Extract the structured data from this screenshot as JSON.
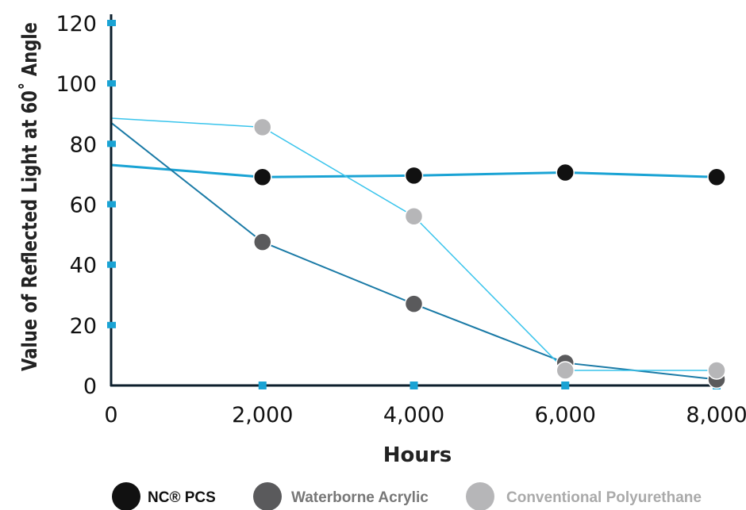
{
  "chart_data": {
    "type": "line",
    "xlabel": "Hours",
    "ylabel": "Value of Reflected Light at 60˚ Angle",
    "x_ticks": [
      "0",
      "2,000",
      "4,000",
      "6,000",
      "8,000"
    ],
    "y_ticks": [
      "0",
      "20",
      "40",
      "60",
      "80",
      "100",
      "120"
    ],
    "xlim": [
      0,
      8000
    ],
    "ylim": [
      0,
      120
    ],
    "grid": false,
    "legend_position": "bottom",
    "x": [
      0,
      2000,
      4000,
      6000,
      8000
    ],
    "series": [
      {
        "name": "NC® PCS",
        "values": [
          73,
          69,
          69.5,
          70.5,
          69
        ],
        "marker_color": "#111111",
        "line_color": "#1aa3d4",
        "label_color": "#111111",
        "start_marker": false
      },
      {
        "name": "Waterborne Acrylic",
        "values": [
          87,
          47.5,
          27,
          7.5,
          2
        ],
        "marker_color": "#5a5a5c",
        "line_color": "#1a7aa6",
        "label_color": "#777777",
        "start_marker": false
      },
      {
        "name": "Conventional Polyurethane",
        "values": [
          88.5,
          85.5,
          56,
          5,
          5
        ],
        "marker_color": "#b6b6b8",
        "line_color": "#39c4ec",
        "label_color": "#aaaaaa",
        "start_marker": false
      }
    ],
    "axis_color": "#0d1f2d",
    "tick_mark_color": "#1aa3d4"
  }
}
